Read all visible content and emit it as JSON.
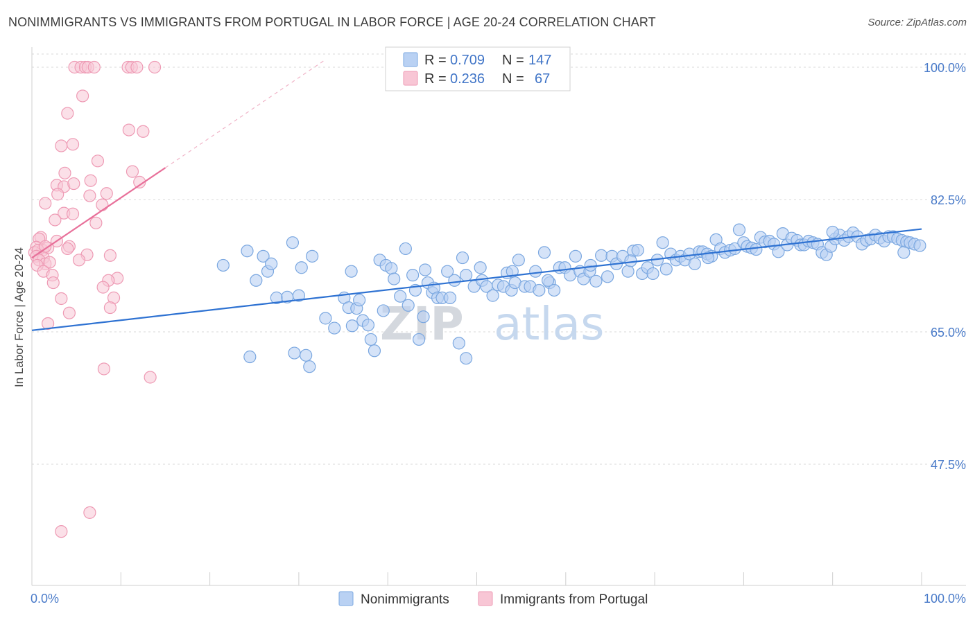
{
  "title": "NONIMMIGRANTS VS IMMIGRANTS FROM PORTUGAL IN LABOR FORCE | AGE 20-24 CORRELATION CHART",
  "source": "Source: ZipAtlas.com",
  "watermark": {
    "zip": "ZIP",
    "atlas": "atlas"
  },
  "colors": {
    "blue_fill": "#b9d1f3",
    "blue_stroke": "#7aa7e0",
    "blue_line": "#2e72d2",
    "pink_fill": "#f8c6d5",
    "pink_stroke": "#ee9ab4",
    "pink_line": "#e8709a",
    "grid": "#d8d8d8",
    "tick_text": "#4a7bc9"
  },
  "legend": {
    "r_label": "R =",
    "n_label": "N =",
    "rows": [
      {
        "r": "0.709",
        "n": "147"
      },
      {
        "r": "0.236",
        "n": "67"
      }
    ]
  },
  "chart_data": {
    "type": "scatter",
    "title": "NONIMMIGRANTS VS IMMIGRANTS FROM PORTUGAL IN LABOR FORCE | AGE 20-24 CORRELATION CHART",
    "xlabel": "",
    "ylabel": "In Labor Force | Age 20-24",
    "xlim": [
      0,
      100
    ],
    "ylim": [
      31.5,
      105
    ],
    "x_tick_labels": [
      {
        "value": 0,
        "label": "0.0%"
      },
      {
        "value": 100,
        "label": "100.0%"
      }
    ],
    "y_ticks": [
      {
        "value": 47.5,
        "label": "47.5%"
      },
      {
        "value": 65.0,
        "label": "65.0%"
      },
      {
        "value": 82.5,
        "label": "82.5%"
      },
      {
        "value": 100.0,
        "label": "100.0%"
      }
    ],
    "grid": "horizontal dashed",
    "legend_position": "top-center",
    "series": [
      {
        "name": "Nonimmigrants",
        "color": "#7aa7e0",
        "r": 0.709,
        "n": 147,
        "trend": {
          "x0": 0,
          "y0": 65.2,
          "x1": 100,
          "y1": 78.6
        },
        "points": [
          [
            21.5,
            73.8
          ],
          [
            24.2,
            75.7
          ],
          [
            25.2,
            71.8
          ],
          [
            26.0,
            75.0
          ],
          [
            26.5,
            73.0
          ],
          [
            26.9,
            74.0
          ],
          [
            27.5,
            69.5
          ],
          [
            29.3,
            76.8
          ],
          [
            30.3,
            73.5
          ],
          [
            31.5,
            75.0
          ],
          [
            24.5,
            61.7
          ],
          [
            29.5,
            62.2
          ],
          [
            30.8,
            61.9
          ],
          [
            31.2,
            60.4
          ],
          [
            28.7,
            69.6
          ],
          [
            33.0,
            66.8
          ],
          [
            34.0,
            65.5
          ],
          [
            35.1,
            69.5
          ],
          [
            35.6,
            68.2
          ],
          [
            35.9,
            73.0
          ],
          [
            36.5,
            68.1
          ],
          [
            36.8,
            69.2
          ],
          [
            37.2,
            66.5
          ],
          [
            37.8,
            65.9
          ],
          [
            38.1,
            64.0
          ],
          [
            38.5,
            62.5
          ],
          [
            39.1,
            74.5
          ],
          [
            39.8,
            73.8
          ],
          [
            40.4,
            73.4
          ],
          [
            40.7,
            72.0
          ],
          [
            39.5,
            67.8
          ],
          [
            41.4,
            69.7
          ],
          [
            42.0,
            76.0
          ],
          [
            42.3,
            68.5
          ],
          [
            42.8,
            72.5
          ],
          [
            43.1,
            70.5
          ],
          [
            43.5,
            64.0
          ],
          [
            44.2,
            73.2
          ],
          [
            44.5,
            71.5
          ],
          [
            45.0,
            70.2
          ],
          [
            44.0,
            67.0
          ],
          [
            45.2,
            70.8
          ],
          [
            45.6,
            69.5
          ],
          [
            46.1,
            69.5
          ],
          [
            46.7,
            73.0
          ],
          [
            47.0,
            69.5
          ],
          [
            47.5,
            71.8
          ],
          [
            48.0,
            63.5
          ],
          [
            48.4,
            74.8
          ],
          [
            48.8,
            72.5
          ],
          [
            48.8,
            61.5
          ],
          [
            49.7,
            71.0
          ],
          [
            50.4,
            73.5
          ],
          [
            50.6,
            71.8
          ],
          [
            51.1,
            71.0
          ],
          [
            51.8,
            69.8
          ],
          [
            52.4,
            71.2
          ],
          [
            53.0,
            71.0
          ],
          [
            53.4,
            72.8
          ],
          [
            53.9,
            70.5
          ],
          [
            54.3,
            71.5
          ],
          [
            54.7,
            74.5
          ],
          [
            55.4,
            71.0
          ],
          [
            56.0,
            71.0
          ],
          [
            56.6,
            73.0
          ],
          [
            57.0,
            70.5
          ],
          [
            57.6,
            75.5
          ],
          [
            58.2,
            71.5
          ],
          [
            58.7,
            70.5
          ],
          [
            59.3,
            73.5
          ],
          [
            59.9,
            73.5
          ],
          [
            60.5,
            72.5
          ],
          [
            61.1,
            75.0
          ],
          [
            61.6,
            73.0
          ],
          [
            62.0,
            72.0
          ],
          [
            62.7,
            73.0
          ],
          [
            63.4,
            71.7
          ],
          [
            64.0,
            75.1
          ],
          [
            64.7,
            72.3
          ],
          [
            65.2,
            75.0
          ],
          [
            65.7,
            74.0
          ],
          [
            66.4,
            75.0
          ],
          [
            67.0,
            73.0
          ],
          [
            67.6,
            75.7
          ],
          [
            68.1,
            75.8
          ],
          [
            68.6,
            72.7
          ],
          [
            69.2,
            73.5
          ],
          [
            69.8,
            72.7
          ],
          [
            70.3,
            74.5
          ],
          [
            70.9,
            76.8
          ],
          [
            71.3,
            73.3
          ],
          [
            71.8,
            75.3
          ],
          [
            72.4,
            74.5
          ],
          [
            72.9,
            75.0
          ],
          [
            73.4,
            74.5
          ],
          [
            73.9,
            75.3
          ],
          [
            74.5,
            74.0
          ],
          [
            75.0,
            75.6
          ],
          [
            75.4,
            75.6
          ],
          [
            75.9,
            75.3
          ],
          [
            76.4,
            75.0
          ],
          [
            76.9,
            77.2
          ],
          [
            77.4,
            76.0
          ],
          [
            77.9,
            75.5
          ],
          [
            78.5,
            75.8
          ],
          [
            79.0,
            76.0
          ],
          [
            79.5,
            78.5
          ],
          [
            80.0,
            76.8
          ],
          [
            80.4,
            76.3
          ],
          [
            80.9,
            76.1
          ],
          [
            81.4,
            75.9
          ],
          [
            81.9,
            77.5
          ],
          [
            82.4,
            76.9
          ],
          [
            82.9,
            77.0
          ],
          [
            83.4,
            76.6
          ],
          [
            83.9,
            75.6
          ],
          [
            84.4,
            78.0
          ],
          [
            84.9,
            76.5
          ],
          [
            85.4,
            77.4
          ],
          [
            86.0,
            77.1
          ],
          [
            86.4,
            76.5
          ],
          [
            86.8,
            76.5
          ],
          [
            87.3,
            77.0
          ],
          [
            87.8,
            76.8
          ],
          [
            88.3,
            76.6
          ],
          [
            88.8,
            75.5
          ],
          [
            89.3,
            75.2
          ],
          [
            89.8,
            76.3
          ],
          [
            90.3,
            77.3
          ],
          [
            90.8,
            77.8
          ],
          [
            91.3,
            77.1
          ],
          [
            91.8,
            77.6
          ],
          [
            92.3,
            78.1
          ],
          [
            92.8,
            77.6
          ],
          [
            93.3,
            76.6
          ],
          [
            93.8,
            77.1
          ],
          [
            94.3,
            77.3
          ],
          [
            94.8,
            77.8
          ],
          [
            95.3,
            77.4
          ],
          [
            95.8,
            77.0
          ],
          [
            96.3,
            77.6
          ],
          [
            96.8,
            77.6
          ],
          [
            97.3,
            77.3
          ],
          [
            97.8,
            77.1
          ],
          [
            98.3,
            76.9
          ],
          [
            98.7,
            76.8
          ],
          [
            99.2,
            76.6
          ],
          [
            99.8,
            76.4
          ],
          [
            76.0,
            74.8
          ],
          [
            90.0,
            78.2
          ],
          [
            98.0,
            75.5
          ],
          [
            30.0,
            69.8
          ],
          [
            62.8,
            73.8
          ],
          [
            36.0,
            65.8
          ],
          [
            67.3,
            74.4
          ],
          [
            58.0,
            71.8
          ],
          [
            54.0,
            73.0
          ]
        ]
      },
      {
        "name": "Immigrants from Portugal",
        "color": "#ee9ab4",
        "r": 0.236,
        "n": 67,
        "trend": {
          "x0": 0,
          "y0": 74.8,
          "x1": 15.0,
          "y1": 86.7
        },
        "trend_dashed_to": {
          "x": 33.0,
          "y": 101.0
        },
        "points": [
          [
            4.8,
            100.0
          ],
          [
            5.5,
            100.0
          ],
          [
            6.0,
            100.0
          ],
          [
            6.3,
            100.0
          ],
          [
            7.0,
            100.0
          ],
          [
            10.8,
            100.0
          ],
          [
            11.2,
            100.0
          ],
          [
            11.8,
            100.0
          ],
          [
            13.8,
            100.0
          ],
          [
            5.7,
            96.2
          ],
          [
            4.0,
            93.9
          ],
          [
            10.9,
            91.7
          ],
          [
            12.5,
            91.5
          ],
          [
            3.3,
            89.6
          ],
          [
            4.6,
            89.8
          ],
          [
            7.4,
            87.6
          ],
          [
            3.7,
            86.0
          ],
          [
            11.3,
            86.2
          ],
          [
            2.8,
            84.4
          ],
          [
            3.6,
            84.2
          ],
          [
            4.7,
            84.6
          ],
          [
            6.6,
            85.0
          ],
          [
            12.1,
            84.8
          ],
          [
            2.9,
            83.2
          ],
          [
            6.5,
            83.0
          ],
          [
            8.4,
            83.3
          ],
          [
            1.5,
            82.0
          ],
          [
            7.9,
            81.8
          ],
          [
            3.6,
            80.7
          ],
          [
            4.6,
            80.6
          ],
          [
            2.6,
            79.8
          ],
          [
            7.2,
            79.4
          ],
          [
            1.0,
            77.5
          ],
          [
            0.8,
            77.3
          ],
          [
            2.8,
            77.0
          ],
          [
            0.5,
            76.2
          ],
          [
            1.2,
            75.8
          ],
          [
            1.8,
            76.1
          ],
          [
            4.2,
            76.3
          ],
          [
            4.0,
            76.0
          ],
          [
            0.3,
            75.5
          ],
          [
            0.7,
            75.8
          ],
          [
            1.5,
            76.3
          ],
          [
            6.2,
            75.2
          ],
          [
            8.8,
            75.1
          ],
          [
            0.5,
            75.0
          ],
          [
            1.3,
            74.8
          ],
          [
            0.8,
            74.5
          ],
          [
            1.5,
            74.0
          ],
          [
            0.6,
            73.8
          ],
          [
            5.3,
            74.5
          ],
          [
            2.0,
            74.2
          ],
          [
            1.3,
            73.0
          ],
          [
            2.3,
            72.5
          ],
          [
            9.6,
            72.1
          ],
          [
            8.6,
            71.8
          ],
          [
            2.4,
            71.5
          ],
          [
            8.0,
            70.9
          ],
          [
            9.2,
            69.5
          ],
          [
            3.3,
            69.4
          ],
          [
            8.8,
            68.2
          ],
          [
            4.2,
            67.5
          ],
          [
            1.8,
            66.1
          ],
          [
            8.1,
            60.1
          ],
          [
            13.3,
            59.0
          ],
          [
            6.5,
            41.1
          ],
          [
            3.3,
            38.6
          ]
        ]
      }
    ]
  },
  "bottom_legend": {
    "items": [
      "Nonimmigrants",
      "Immigrants from Portugal"
    ]
  }
}
